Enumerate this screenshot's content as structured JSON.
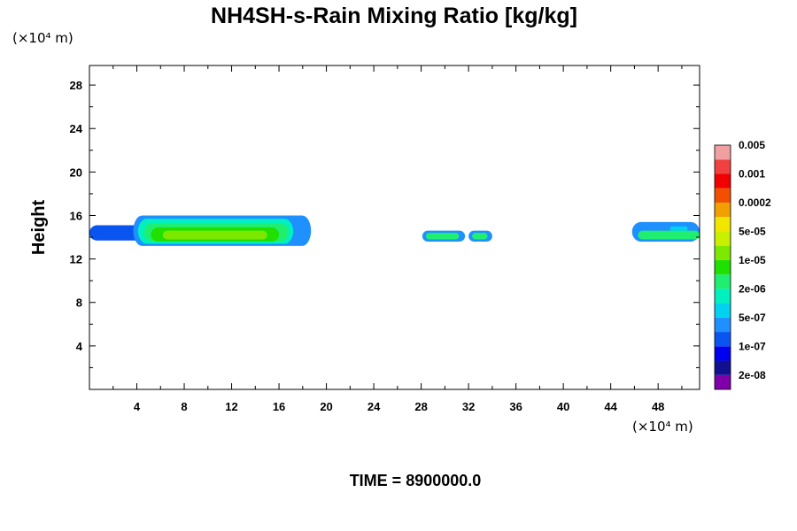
{
  "chart_data": {
    "type": "heatmap",
    "title": "NH4SH-s-Rain Mixing Ratio [kg/kg]",
    "ylabel": "Height",
    "x_unit_label": "(×10⁴ m)",
    "y_unit_label": "(×10⁴ m)",
    "time_label": "TIME = 8900000.0",
    "xlim": [
      0,
      51.5
    ],
    "ylim": [
      0,
      29.8
    ],
    "x_ticks": [
      4,
      8,
      12,
      16,
      20,
      24,
      28,
      32,
      36,
      40,
      44,
      48
    ],
    "y_ticks": [
      4,
      8,
      12,
      16,
      20,
      24,
      28
    ],
    "colorbar": {
      "colors": [
        "#7f00a8",
        "#101090",
        "#0000f0",
        "#0a55f0",
        "#1e90ff",
        "#00d2f0",
        "#00f0c0",
        "#20ee70",
        "#20e000",
        "#7ce800",
        "#c8f000",
        "#f0e600",
        "#f0a000",
        "#f05000",
        "#f00000",
        "#f04040",
        "#f0a0a0"
      ],
      "labels": [
        "2e-08",
        "1e-07",
        "5e-07",
        "2e-06",
        "1e-05",
        "5e-05",
        "0.0002",
        "0.001",
        "0.005"
      ]
    },
    "regions": [
      {
        "x": [
          0,
          6
        ],
        "y": [
          13.7,
          15.1
        ],
        "level": 3
      },
      {
        "x": [
          3.7,
          18.7
        ],
        "y": [
          13.2,
          16.0
        ],
        "level": 4
      },
      {
        "x": [
          4.1,
          17.2
        ],
        "y": [
          13.4,
          15.7
        ],
        "level": 6
      },
      {
        "x": [
          4.6,
          16.8
        ],
        "y": [
          13.6,
          15.3
        ],
        "level": 7
      },
      {
        "x": [
          5.2,
          16.0
        ],
        "y": [
          13.6,
          14.9
        ],
        "level": 8
      },
      {
        "x": [
          6.2,
          15.0
        ],
        "y": [
          13.8,
          14.6
        ],
        "level": 9
      },
      {
        "x": [
          28.1,
          31.7
        ],
        "y": [
          13.6,
          14.6
        ],
        "level": 4
      },
      {
        "x": [
          28.4,
          31.2
        ],
        "y": [
          13.8,
          14.4
        ],
        "level": 7
      },
      {
        "x": [
          32.0,
          34.0
        ],
        "y": [
          13.6,
          14.6
        ],
        "level": 4
      },
      {
        "x": [
          32.3,
          33.6
        ],
        "y": [
          13.8,
          14.4
        ],
        "level": 7
      },
      {
        "x": [
          45.8,
          51.5
        ],
        "y": [
          13.6,
          15.4
        ],
        "level": 4
      },
      {
        "x": [
          46.3,
          51.5
        ],
        "y": [
          13.8,
          14.6
        ],
        "level": 7
      },
      {
        "x": [
          49.0,
          50.5
        ],
        "y": [
          14.6,
          15.0
        ],
        "level": 5
      }
    ]
  }
}
